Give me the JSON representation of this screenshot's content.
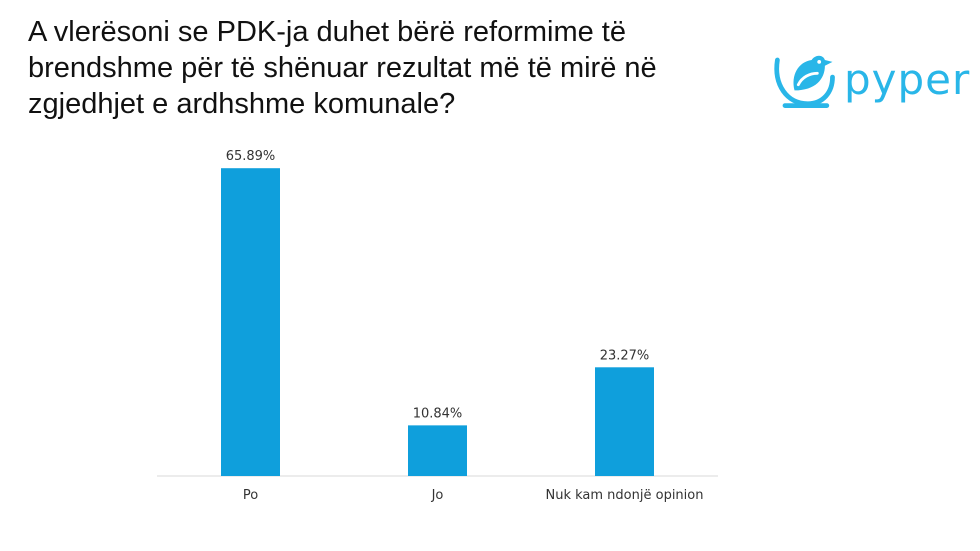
{
  "slide": {
    "title": "A vlerësoni se PDK-ja duhet bërë reformime të brendshme për të shënuar rezultat më të mirë në zgjedhjet e ardhshme komunale?",
    "logo_text": "pyper",
    "accent_color": "#29b6e8"
  },
  "chart_data": {
    "type": "bar",
    "categories": [
      "Po",
      "Jo",
      "Nuk kam ndonjë opinion"
    ],
    "values": [
      65.89,
      10.84,
      23.27
    ],
    "data_labels": [
      "65.89%",
      "10.84%",
      "23.27%"
    ],
    "ylim": [
      0,
      70
    ],
    "bar_color": "#0f9fdc",
    "grid": false,
    "legend": false
  }
}
